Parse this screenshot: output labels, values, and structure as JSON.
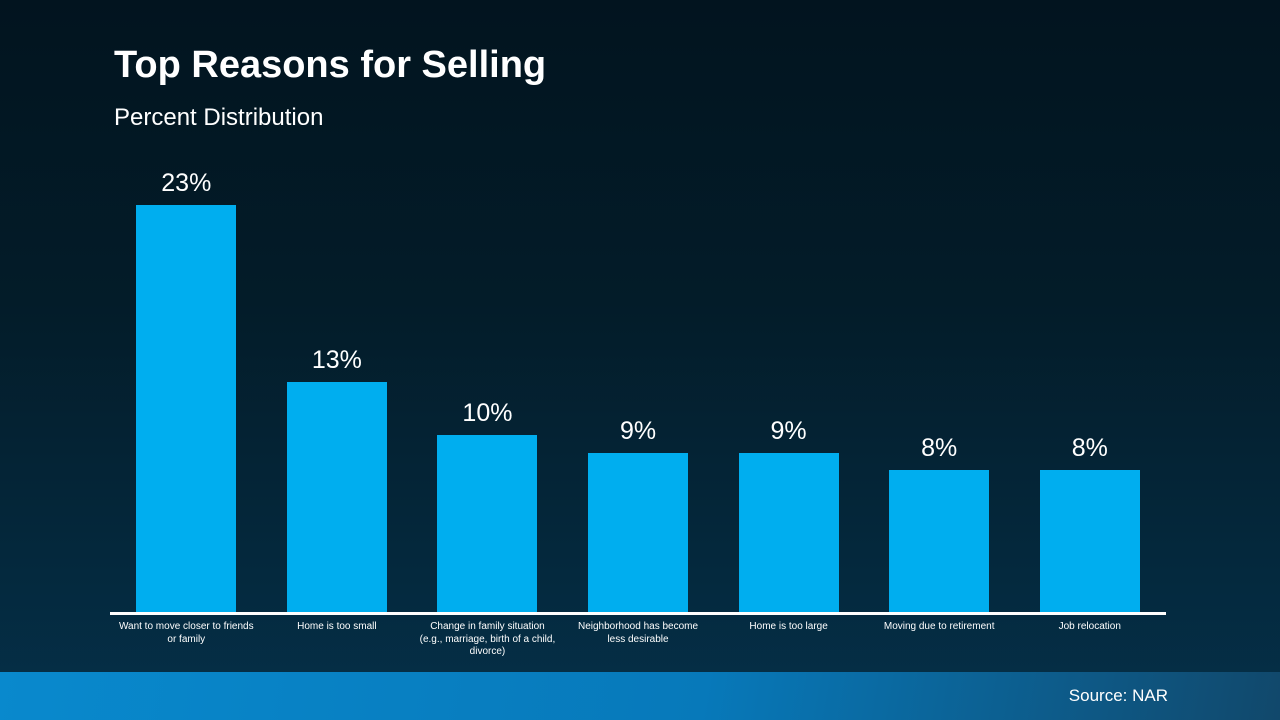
{
  "slide": {
    "title": "Top Reasons for Selling",
    "subtitle": "Percent Distribution",
    "source": "Source: NAR"
  },
  "chart_data": {
    "type": "bar",
    "title": "Top Reasons for Selling",
    "subtitle": "Percent Distribution",
    "categories": [
      "Want to move closer to friends or family",
      "Home is too small",
      "Change in family situation (e.g., marriage, birth of a child, divorce)",
      "Neighborhood has become less desirable",
      "Home is too large",
      "Moving due to retirement",
      "Job relocation"
    ],
    "values": [
      23,
      13,
      10,
      9,
      9,
      8,
      8
    ],
    "value_labels": [
      "23%",
      "13%",
      "10%",
      "9%",
      "9%",
      "8%",
      "8%"
    ],
    "unit": "percent",
    "ylim": [
      0,
      26
    ],
    "grid": false,
    "legend": false,
    "bar_color": "#00AEEF",
    "label_color": "#FFFFFF",
    "source": "Source: NAR"
  }
}
